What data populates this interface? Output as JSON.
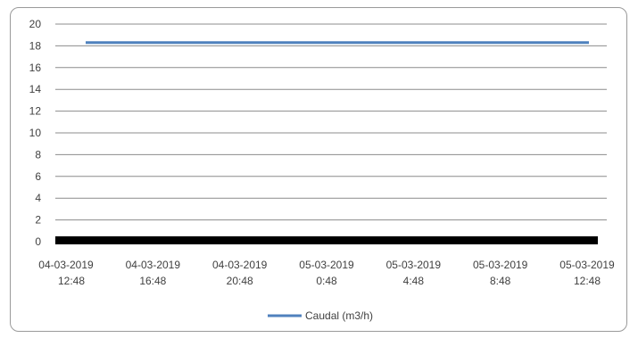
{
  "chart_data": {
    "type": "line",
    "x": [
      "04-03-2019 12:48",
      "04-03-2019 16:48",
      "04-03-2019 20:48",
      "05-03-2019 0:48",
      "05-03-2019 4:48",
      "05-03-2019 8:48",
      "05-03-2019 12:48"
    ],
    "x_tick_labels": [
      [
        "04-03-2019",
        "12:48"
      ],
      [
        "04-03-2019",
        "16:48"
      ],
      [
        "04-03-2019",
        "20:48"
      ],
      [
        "05-03-2019",
        "0:48"
      ],
      [
        "05-03-2019",
        "4:48"
      ],
      [
        "05-03-2019",
        "8:48"
      ],
      [
        "05-03-2019",
        "12:48"
      ]
    ],
    "y_ticks": [
      0,
      2,
      4,
      6,
      8,
      10,
      12,
      14,
      16,
      18,
      20
    ],
    "ylim": [
      0,
      20
    ],
    "grid": true,
    "legend_position": "bottom",
    "series": [
      {
        "name": "Caudal (m3/h)",
        "values": [
          18.3,
          18.3,
          18.3,
          18.3,
          18.3,
          18.3,
          18.3
        ],
        "color": "#4f81bd"
      }
    ],
    "baseline_band": {
      "value": 0,
      "color": "#000000"
    },
    "title": "",
    "xlabel": "",
    "ylabel": ""
  }
}
